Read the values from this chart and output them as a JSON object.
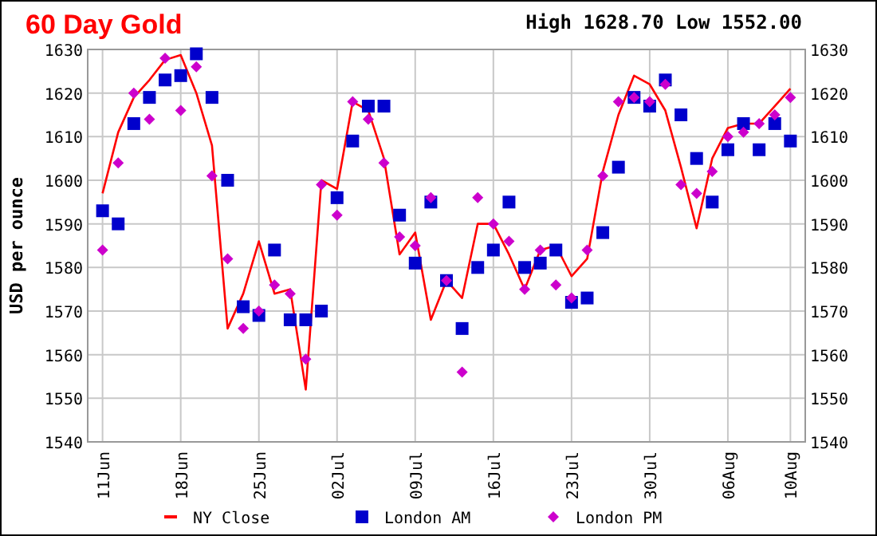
{
  "chart_data": {
    "type": "line",
    "title": "60 Day Gold",
    "subtitle": "High 1628.70 Low 1552.00",
    "ylabel": "USD per ounce",
    "categories": [
      "11Jun",
      null,
      null,
      null,
      null,
      "18Jun",
      null,
      null,
      null,
      null,
      "25Jun",
      null,
      null,
      null,
      null,
      "02Jul",
      null,
      null,
      null,
      null,
      "09Jul",
      null,
      null,
      null,
      null,
      "16Jul",
      null,
      null,
      null,
      null,
      "23Jul",
      null,
      null,
      null,
      null,
      "30Jul",
      null,
      null,
      null,
      null,
      "06Aug",
      null,
      null,
      null,
      "10Aug"
    ],
    "series": [
      {
        "name": "NY Close",
        "color": "#ff0000",
        "marker": "none",
        "line_style": "solid",
        "values": [
          1597,
          1611,
          1619,
          1623,
          1627.6,
          1628.7,
          1620,
          1608,
          1566,
          1574,
          1586,
          1574,
          1575,
          1552,
          1600,
          1598,
          1618,
          1616,
          1605,
          1583,
          1588,
          1568,
          1577,
          1573,
          1590,
          1590,
          1583,
          1575,
          1584,
          1585,
          1578,
          1582,
          1602,
          1615,
          1624,
          1622,
          1616,
          1603,
          1589,
          1605,
          1612,
          1613,
          1613,
          1617,
          1621
        ]
      },
      {
        "name": "London AM",
        "type": "scatter",
        "color": "#0000cc",
        "marker": "square",
        "values": [
          1593,
          1590,
          1613,
          1619,
          1623,
          1624,
          1629,
          1619,
          1600,
          1571,
          1569,
          1584,
          1568,
          1568,
          1570,
          1596,
          1609,
          1617,
          1617,
          1592,
          1581,
          1595,
          1577,
          1566,
          1580,
          1584,
          1595,
          1580,
          1581,
          1584,
          1572,
          1573,
          1588,
          1603,
          1619,
          1617,
          1623,
          1615,
          1605,
          1595,
          1607,
          1613,
          1607,
          1613,
          1609
        ]
      },
      {
        "name": "London PM",
        "type": "scatter",
        "color": "#cc00cc",
        "marker": "diamond",
        "values": [
          1584,
          1604,
          1620,
          1614,
          1628,
          1616,
          1626,
          1601,
          1582,
          1566,
          1570,
          1576,
          1574,
          1559,
          1599,
          1592,
          1618,
          1614,
          1604,
          1587,
          1585,
          1596,
          1577,
          1556,
          1596,
          1590,
          1586,
          1575,
          1584,
          1576,
          1573,
          1584,
          1601,
          1618,
          1619,
          1618,
          1622,
          1599,
          1597,
          1602,
          1610,
          1611,
          1613,
          1615,
          1619
        ]
      }
    ],
    "ylim": [
      1540,
      1630
    ],
    "yticks": [
      1540,
      1550,
      1560,
      1570,
      1580,
      1590,
      1600,
      1610,
      1620,
      1630
    ],
    "y2lim": [
      1540,
      1630
    ],
    "y2ticks": [
      1540,
      1550,
      1560,
      1570,
      1580,
      1590,
      1600,
      1610,
      1620,
      1630
    ],
    "grid": true,
    "legend": "bottom"
  }
}
